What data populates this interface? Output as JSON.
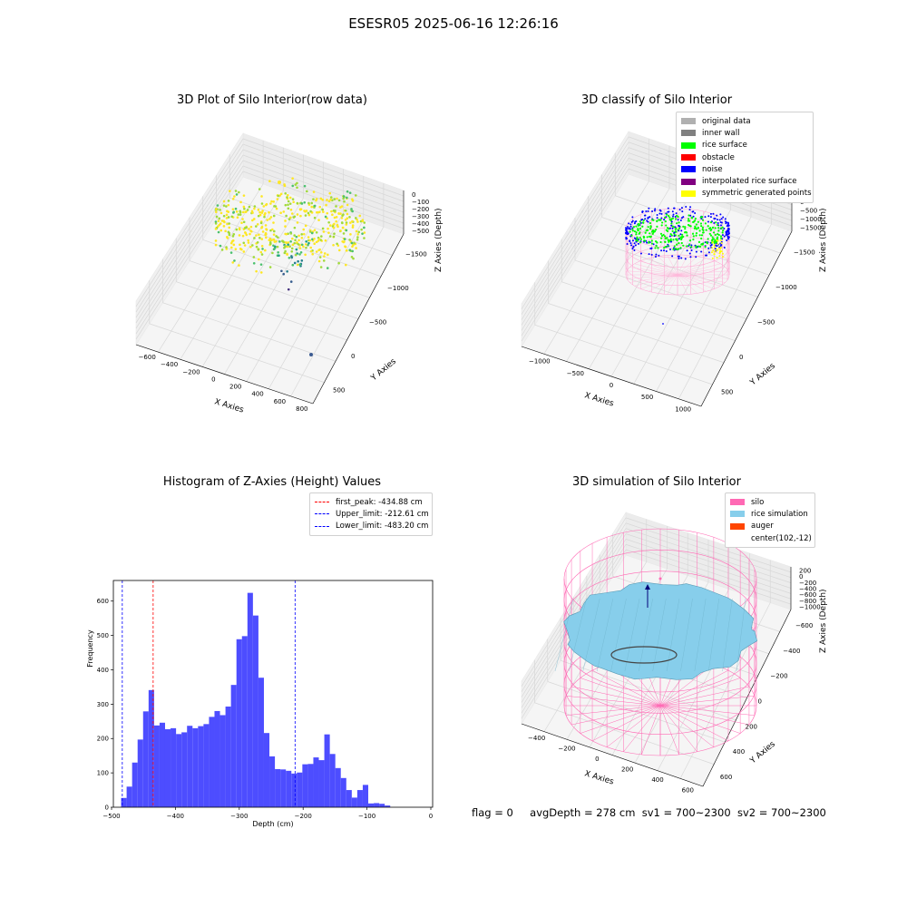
{
  "figure": {
    "title": "ESESR05 2025-06-16 12:26:16",
    "status": {
      "flag": "flag = 0",
      "avg_depth": "avgDepth = 278 cm",
      "sv1": "sv1 = 700~2300",
      "sv2": "sv2 = 700~2300"
    }
  },
  "colors": {
    "histogram_bar": "#4d4dff",
    "first_peak_line": "#ff0000",
    "limit_lines": "#0000ff",
    "silo": "#ff69b4",
    "rice_simulation": "#87ceeb",
    "auger": "#ff4500",
    "rice_surface": "#00ff00",
    "noise": "#0000ff",
    "obstacle": "#ff0000",
    "original_data": "#b0b0b0",
    "inner_wall": "#808080",
    "interpolated": "#800080",
    "symmetric": "#ffff00"
  },
  "chart_data": [
    {
      "type": "scatter",
      "title": "3D Plot of Silo Interior(row data)",
      "xlabel": "X Axies",
      "ylabel": "Y Axies",
      "zlabel": "Z Axies (Depth)",
      "x_ticks": [
        "−600",
        "−400",
        "−200",
        "0",
        "200",
        "400",
        "600",
        "800"
      ],
      "y_ticks": [
        "500",
        "0",
        "−500",
        "−1000",
        "−1500"
      ],
      "z_ticks": [
        "0",
        "−100",
        "−200",
        "−300",
        "−400",
        "−500"
      ],
      "colormap": "viridis",
      "grid": true
    },
    {
      "type": "scatter",
      "title": "3D classify of Silo Interior",
      "xlabel": "X Axies",
      "ylabel": "Y Axies",
      "zlabel": "Z Axies (Depth)",
      "x_ticks": [
        "−1000",
        "−500",
        "0",
        "500",
        "1000"
      ],
      "y_ticks": [
        "500",
        "0",
        "−500",
        "−1000",
        "−1500"
      ],
      "z_ticks": [
        "500",
        "0",
        "−500",
        "−1000",
        "−1500"
      ],
      "legend": [
        "original data",
        "inner wall",
        "rice surface",
        "obstacle",
        "noise",
        "interpolated rice surface",
        "symmetric generated points"
      ],
      "legend_position": "top-right",
      "grid": true
    },
    {
      "type": "bar",
      "title": "Histogram of Z-Axies (Height) Values",
      "xlabel": "Depth (cm)",
      "ylabel": "Frequency",
      "xlim": [
        -500,
        0
      ],
      "ylim": [
        0,
        660
      ],
      "x_ticks": [
        "−500",
        "−400",
        "−300",
        "−200",
        "−100",
        "0"
      ],
      "y_ticks": [
        "0",
        "100",
        "200",
        "300",
        "400",
        "500",
        "600"
      ],
      "bin_start": -485,
      "bin_width": 8.6,
      "values": [
        27,
        60,
        130,
        197,
        279,
        341,
        238,
        246,
        227,
        230,
        213,
        218,
        237,
        230,
        236,
        242,
        263,
        280,
        268,
        293,
        356,
        489,
        498,
        624,
        558,
        377,
        216,
        148,
        111,
        110,
        106,
        98,
        101,
        125,
        126,
        145,
        137,
        212,
        155,
        114,
        85,
        50,
        28,
        50,
        65,
        11,
        12,
        10,
        5
      ],
      "vlines": [
        {
          "label": "first_peak: -434.88 cm",
          "x": -434.88,
          "color": "#ff0000"
        },
        {
          "label": "Upper_limit: -212.61 cm",
          "x": -212.61,
          "color": "#0000ff"
        },
        {
          "label": "Lower_limit: -483.20 cm",
          "x": -483.2,
          "color": "#0000ff"
        }
      ],
      "legend_position": "top-right"
    },
    {
      "type": "area",
      "title": "3D simulation of Silo Interior",
      "xlabel": "X Axies",
      "ylabel": "Y Axies",
      "zlabel": "Z Axies (Depth)",
      "x_ticks": [
        "−400",
        "−200",
        "0",
        "200",
        "400",
        "600"
      ],
      "y_ticks": [
        "600",
        "400",
        "200",
        "0",
        "−200",
        "−400",
        "−600"
      ],
      "z_ticks": [
        "200",
        "0",
        "−200",
        "−400",
        "−600",
        "−800",
        "−1000"
      ],
      "legend": [
        "silo",
        "rice simulation",
        "auger",
        "center(102,-12)"
      ],
      "legend_position": "top-right",
      "grid": true
    }
  ]
}
